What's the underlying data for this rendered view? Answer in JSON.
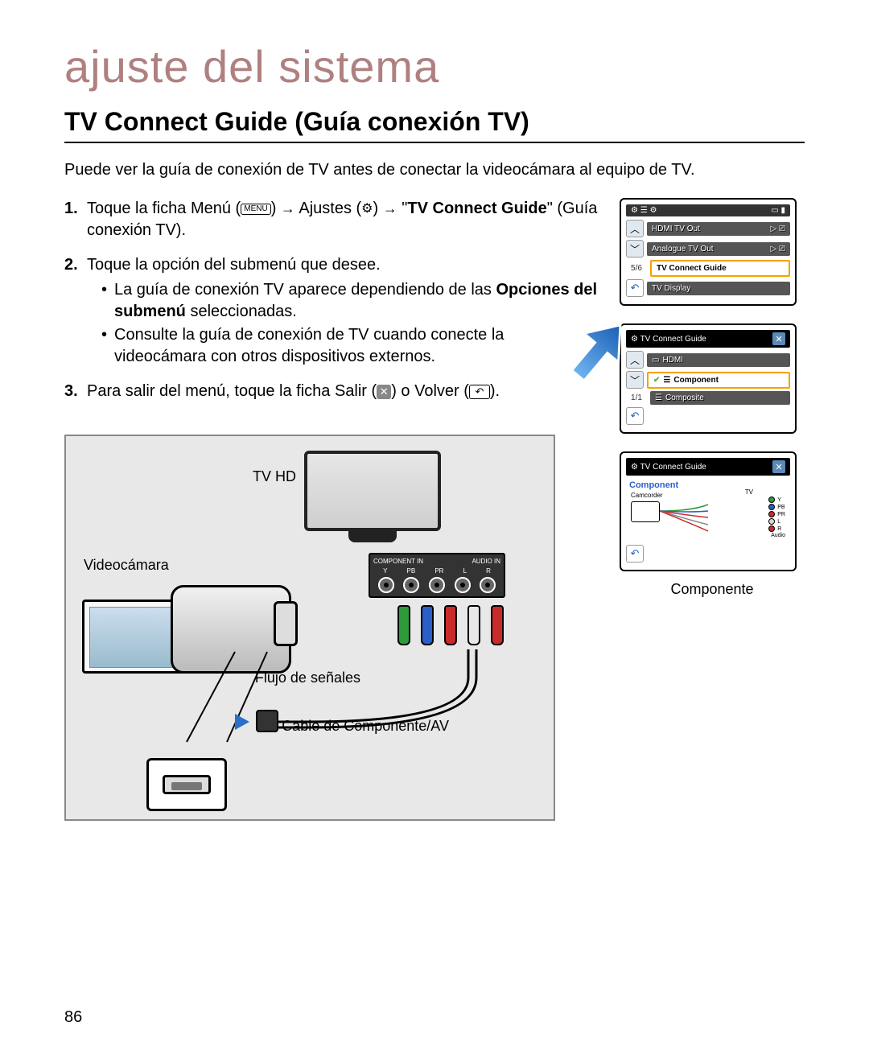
{
  "page_number": "86",
  "chapter_title": "ajuste del sistema",
  "section_title": "TV Connect Guide (Guía conexión TV)",
  "intro": "Puede ver la guía de conexión de TV antes de conectar la videocámara al equipo de TV.",
  "steps": {
    "s1_a": "Toque la ficha Menú (",
    "s1_menu": "MENU",
    "s1_b": ") ",
    "s1_c": " Ajustes (",
    "s1_d": ") ",
    "s1_e": " \"",
    "s1_target": "TV Connect Guide",
    "s1_f": "\" (Guía conexión TV).",
    "s2": "Toque la opción del submenú que desee.",
    "s2_sub1_a": "La guía de conexión TV aparece dependiendo de las ",
    "s2_sub1_b": "Opciones del submenú",
    "s2_sub1_c": " seleccionadas.",
    "s2_sub2": "Consulte la guía de conexión de TV cuando conecte la videocámara con otros dispositivos externos.",
    "s3_a": "Para salir del menú, toque la ficha Salir (",
    "s3_b": ") o Volver (",
    "s3_c": ")."
  },
  "screen1": {
    "items": [
      "HDMI TV Out",
      "Analogue TV Out",
      "TV Connect Guide",
      "TV Display"
    ],
    "selected_index": 2,
    "pager": "5/6"
  },
  "screen2": {
    "title": "TV Connect Guide",
    "items": [
      "HDMI",
      "Component",
      "Composite"
    ],
    "selected_index": 1,
    "pager": "1/1"
  },
  "screen3": {
    "title": "TV Connect Guide",
    "subtitle": "Component",
    "camcorder_label": "Camcorder",
    "tv_label": "TV",
    "ports": [
      {
        "label": "Y",
        "color": "#2e9a3a"
      },
      {
        "label": "PB",
        "color": "#2a5fc9"
      },
      {
        "label": "PR",
        "color": "#c92a2a"
      },
      {
        "label": "L",
        "color": "#d8d8d8"
      },
      {
        "label": "R",
        "color": "#c92a2a"
      }
    ],
    "audio_label": "Audio"
  },
  "caption3": "Componente",
  "diagram": {
    "tv_label": "TV HD",
    "camcorder_label": "Videocámara",
    "panel_header_left": "COMPONENT IN",
    "panel_header_right": "AUDIO IN",
    "panel_ports": [
      "Y",
      "PB",
      "PR",
      "L",
      "R"
    ],
    "plug_colors": [
      "#2e9a3a",
      "#2a5fc9",
      "#c92a2a",
      "#e8e8e8",
      "#c92a2a"
    ],
    "flow_label": "Flujo de señales",
    "cable_label": "Cable de Componente/AV"
  },
  "colors": {
    "chapter": "#b08080",
    "highlight": "#f7a000",
    "arrow": "#2a6fc9",
    "diagram_bg": "#e8e8e8"
  }
}
